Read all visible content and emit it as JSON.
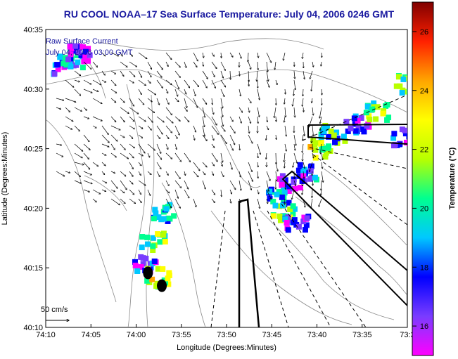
{
  "title": "RU COOL  NOAA–17  Sea Surface Temperature:  July 04, 2006 0246 GMT",
  "overlay": {
    "line1": "Raw Surface Current",
    "line2": "July 04, 2006 03:00 GMT",
    "scale_label": "50 cm/s"
  },
  "colors": {
    "land_outline": "#888888",
    "vectors": "#000000",
    "title_text": "#1a1aa0"
  },
  "chart_data": {
    "type": "heatmap",
    "title": "RU COOL  NOAA–17  Sea Surface Temperature:  July 04, 2006 0246 GMT",
    "xlabel": "Longitude (Degrees:Minutes)",
    "ylabel": "Latitude (Degrees:Minutes)",
    "x_ticks": [
      "74:10",
      "74:05",
      "74:00",
      "73:55",
      "73:50",
      "73:45",
      "73:40",
      "73:35",
      "73:3"
    ],
    "y_ticks": [
      "40:35",
      "40:30",
      "40:25",
      "40:20",
      "40:15",
      "40:10"
    ],
    "x_range_deg_west": [
      74.1667,
      73.5167
    ],
    "y_range_deg_north": [
      40.1667,
      40.5833
    ],
    "colorbar": {
      "label": "Temperature (°C)",
      "range": [
        15,
        27
      ],
      "ticks": [
        16,
        18,
        20,
        22,
        24,
        26
      ],
      "colors": [
        "#ff00ff",
        "#7a3cff",
        "#0000ff",
        "#00c8ff",
        "#00ff90",
        "#b8ff00",
        "#ffff00",
        "#ffa500",
        "#ff2000",
        "#800000"
      ]
    },
    "sst_patches": [
      {
        "lon": 74.138,
        "lat": 40.536,
        "temp": 17
      },
      {
        "lon": 74.125,
        "lat": 40.545,
        "temp": 19
      },
      {
        "lon": 74.11,
        "lat": 40.552,
        "temp": 16
      },
      {
        "lon": 73.612,
        "lat": 40.455,
        "temp": 17
      },
      {
        "lon": 73.575,
        "lat": 40.472,
        "temp": 21
      },
      {
        "lon": 73.68,
        "lat": 40.42,
        "temp": 22
      },
      {
        "lon": 73.655,
        "lat": 40.44,
        "temp": 20
      },
      {
        "lon": 73.705,
        "lat": 40.385,
        "temp": 18
      },
      {
        "lon": 73.73,
        "lat": 40.37,
        "temp": 16
      },
      {
        "lon": 73.755,
        "lat": 40.355,
        "temp": 19
      },
      {
        "lon": 73.745,
        "lat": 40.33,
        "temp": 21
      },
      {
        "lon": 73.72,
        "lat": 40.315,
        "temp": 17
      },
      {
        "lon": 73.96,
        "lat": 40.33,
        "temp": 19
      },
      {
        "lon": 73.978,
        "lat": 40.29,
        "temp": 21
      },
      {
        "lon": 73.99,
        "lat": 40.26,
        "temp": 17
      },
      {
        "lon": 73.97,
        "lat": 40.24,
        "temp": 22
      },
      {
        "lon": 73.52,
        "lat": 40.51,
        "temp": 21
      },
      {
        "lon": 73.53,
        "lat": 40.435,
        "temp": 17
      }
    ],
    "stations": [
      {
        "lon": 73.983,
        "lat": 40.243
      },
      {
        "lon": 73.958,
        "lat": 40.225
      }
    ]
  }
}
